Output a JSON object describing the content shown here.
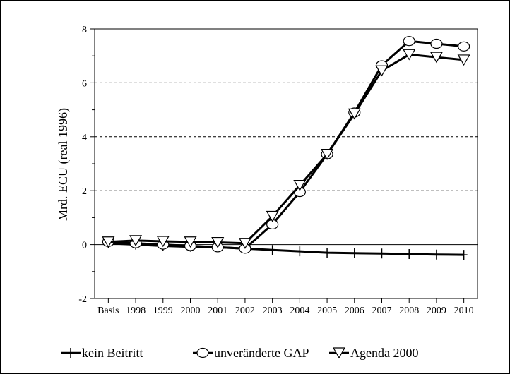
{
  "chart_data": {
    "type": "line",
    "title": "",
    "xlabel": "",
    "ylabel": "Mrd. ECU (real 1996)",
    "categories": [
      "Basis",
      "1998",
      "1999",
      "2000",
      "2001",
      "2002",
      "2003",
      "2004",
      "2005",
      "2006",
      "2007",
      "2008",
      "2009",
      "2010"
    ],
    "ylim": [
      -2,
      8
    ],
    "yticks": [
      -2,
      0,
      2,
      4,
      6,
      8
    ],
    "grid": "horizontal dashed at 2, 4, 6",
    "legend_position": "bottom",
    "series": [
      {
        "name": "kein Beitritt",
        "marker": "plus",
        "values": [
          0.05,
          0.0,
          -0.05,
          -0.08,
          -0.1,
          -0.15,
          -0.2,
          -0.25,
          -0.3,
          -0.32,
          -0.33,
          -0.35,
          -0.37,
          -0.38
        ]
      },
      {
        "name": "unveränderte GAP",
        "marker": "circle",
        "values": [
          0.1,
          0.05,
          0.0,
          -0.05,
          -0.1,
          -0.15,
          0.75,
          1.95,
          3.35,
          4.9,
          6.65,
          7.55,
          7.45,
          7.35
        ]
      },
      {
        "name": "Agenda 2000",
        "marker": "triangle-down",
        "values": [
          0.1,
          0.15,
          0.12,
          0.1,
          0.08,
          0.05,
          1.05,
          2.2,
          3.35,
          4.85,
          6.45,
          7.05,
          6.95,
          6.85
        ]
      }
    ]
  }
}
